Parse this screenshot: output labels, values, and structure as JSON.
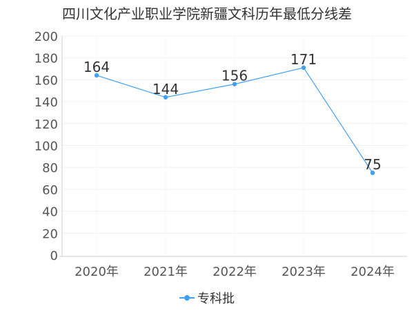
{
  "chart_data": {
    "type": "line",
    "title": "四川文化产业职业学院新疆文科历年最低分线差",
    "categories": [
      "2020年",
      "2021年",
      "2022年",
      "2023年",
      "2024年"
    ],
    "series": [
      {
        "name": "专科批",
        "values": [
          164,
          144,
          156,
          171,
          75
        ],
        "color": "#3fa0f6"
      }
    ],
    "ylim": [
      0,
      200
    ],
    "yticks": [
      0,
      20,
      40,
      60,
      80,
      100,
      120,
      140,
      160,
      180,
      200
    ],
    "grid": true,
    "legend": "bottom-center",
    "xlabel": "",
    "ylabel": ""
  }
}
